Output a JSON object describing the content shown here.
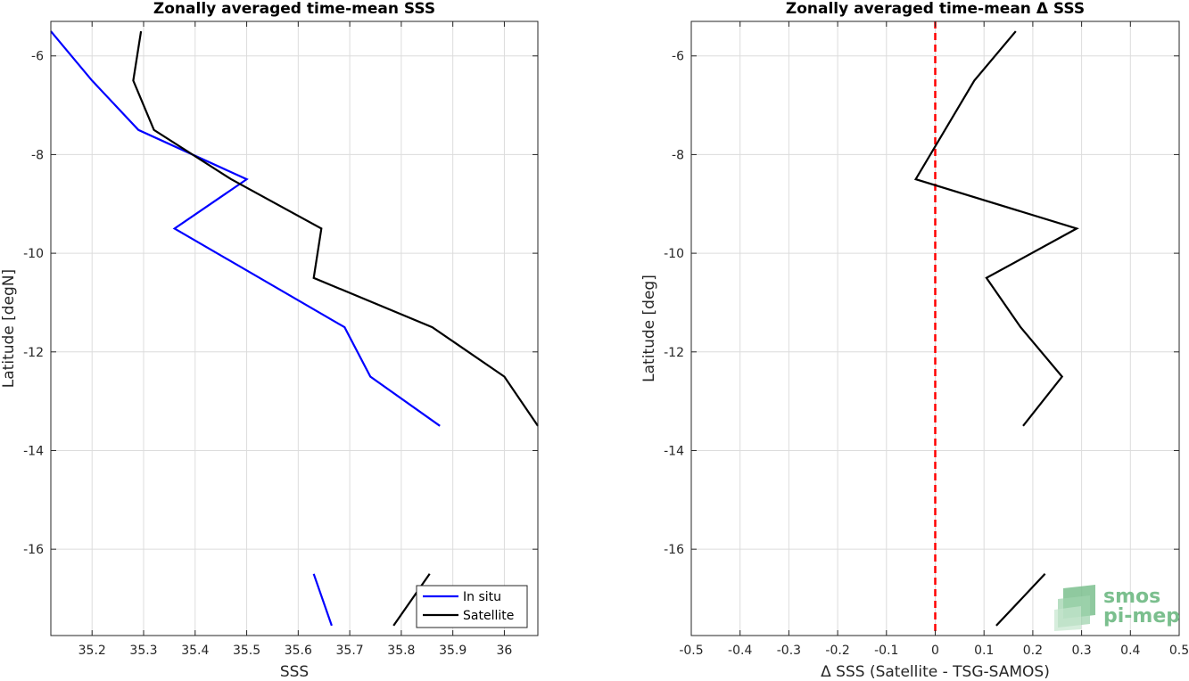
{
  "chart_data": [
    {
      "type": "line",
      "title": "Zonally averaged time-mean SSS",
      "xlabel": "SSS",
      "ylabel": "Latitude [degN]",
      "xlim": [
        35.12,
        36.065
      ],
      "ylim": [
        -17.75,
        -5.3
      ],
      "xticks": [
        35.2,
        35.3,
        35.4,
        35.5,
        35.6,
        35.7,
        35.8,
        35.9,
        36.0
      ],
      "xtick_labels": [
        "35.2",
        "35.3",
        "35.4",
        "35.5",
        "35.6",
        "35.7",
        "35.8",
        "35.9",
        "36"
      ],
      "yticks": [
        -16,
        -14,
        -12,
        -10,
        -8,
        -6
      ],
      "ytick_labels": [
        "-16",
        "-14",
        "-12",
        "-10",
        "-8",
        "-6"
      ],
      "grid": true,
      "legend_placement": "bottom-right",
      "series": [
        {
          "name": "In situ",
          "color": "#0000ff",
          "segments": [
            [
              [
                35.12,
                -5.5
              ],
              [
                35.2,
                -6.5
              ],
              [
                35.29,
                -7.5
              ],
              [
                35.5,
                -8.5
              ],
              [
                35.36,
                -9.5
              ],
              [
                35.69,
                -11.5
              ],
              [
                35.74,
                -12.5
              ],
              [
                35.875,
                -13.5
              ]
            ],
            [
              [
                35.63,
                -16.5
              ],
              [
                35.665,
                -17.55
              ]
            ]
          ]
        },
        {
          "name": "Satellite",
          "color": "#000000",
          "segments": [
            [
              [
                35.295,
                -5.5
              ],
              [
                35.28,
                -6.5
              ],
              [
                35.32,
                -7.5
              ],
              [
                35.47,
                -8.5
              ],
              [
                35.645,
                -9.5
              ],
              [
                35.63,
                -10.5
              ],
              [
                35.86,
                -11.5
              ],
              [
                36.0,
                -12.5
              ],
              [
                36.065,
                -13.5
              ]
            ],
            [
              [
                35.855,
                -16.5
              ],
              [
                35.785,
                -17.55
              ]
            ]
          ]
        }
      ]
    },
    {
      "type": "line",
      "title": "Zonally averaged time-mean Δ SSS",
      "xlabel": "Δ SSS (Satellite - TSG-SAMOS)",
      "ylabel": "Latitude [deg]",
      "xlim": [
        -0.5,
        0.5
      ],
      "ylim": [
        -17.75,
        -5.3
      ],
      "xticks": [
        -0.5,
        -0.4,
        -0.3,
        -0.2,
        -0.1,
        0,
        0.1,
        0.2,
        0.3,
        0.4,
        0.5
      ],
      "xtick_labels": [
        "-0.5",
        "-0.4",
        "-0.3",
        "-0.2",
        "-0.1",
        "0",
        "0.1",
        "0.2",
        "0.3",
        "0.4",
        "0.5"
      ],
      "yticks": [
        -16,
        -14,
        -12,
        -10,
        -8,
        -6
      ],
      "ytick_labels": [
        "-16",
        "-14",
        "-12",
        "-10",
        "-8",
        "-6"
      ],
      "grid": true,
      "reference_line": {
        "x": 0,
        "color": "#ff0000",
        "style": "dashed"
      },
      "series": [
        {
          "color": "#000000",
          "segments": [
            [
              [
                0.165,
                -5.5
              ],
              [
                0.08,
                -6.5
              ],
              [
                -0.04,
                -8.5
              ],
              [
                0.29,
                -9.5
              ],
              [
                0.105,
                -10.5
              ],
              [
                0.175,
                -11.5
              ],
              [
                0.26,
                -12.5
              ],
              [
                0.18,
                -13.5
              ]
            ],
            [
              [
                0.225,
                -16.5
              ],
              [
                0.125,
                -17.55
              ]
            ]
          ]
        }
      ]
    }
  ],
  "logo": {
    "line1": "smos",
    "line2": "pi-mep",
    "color": "#7bbf8e"
  }
}
